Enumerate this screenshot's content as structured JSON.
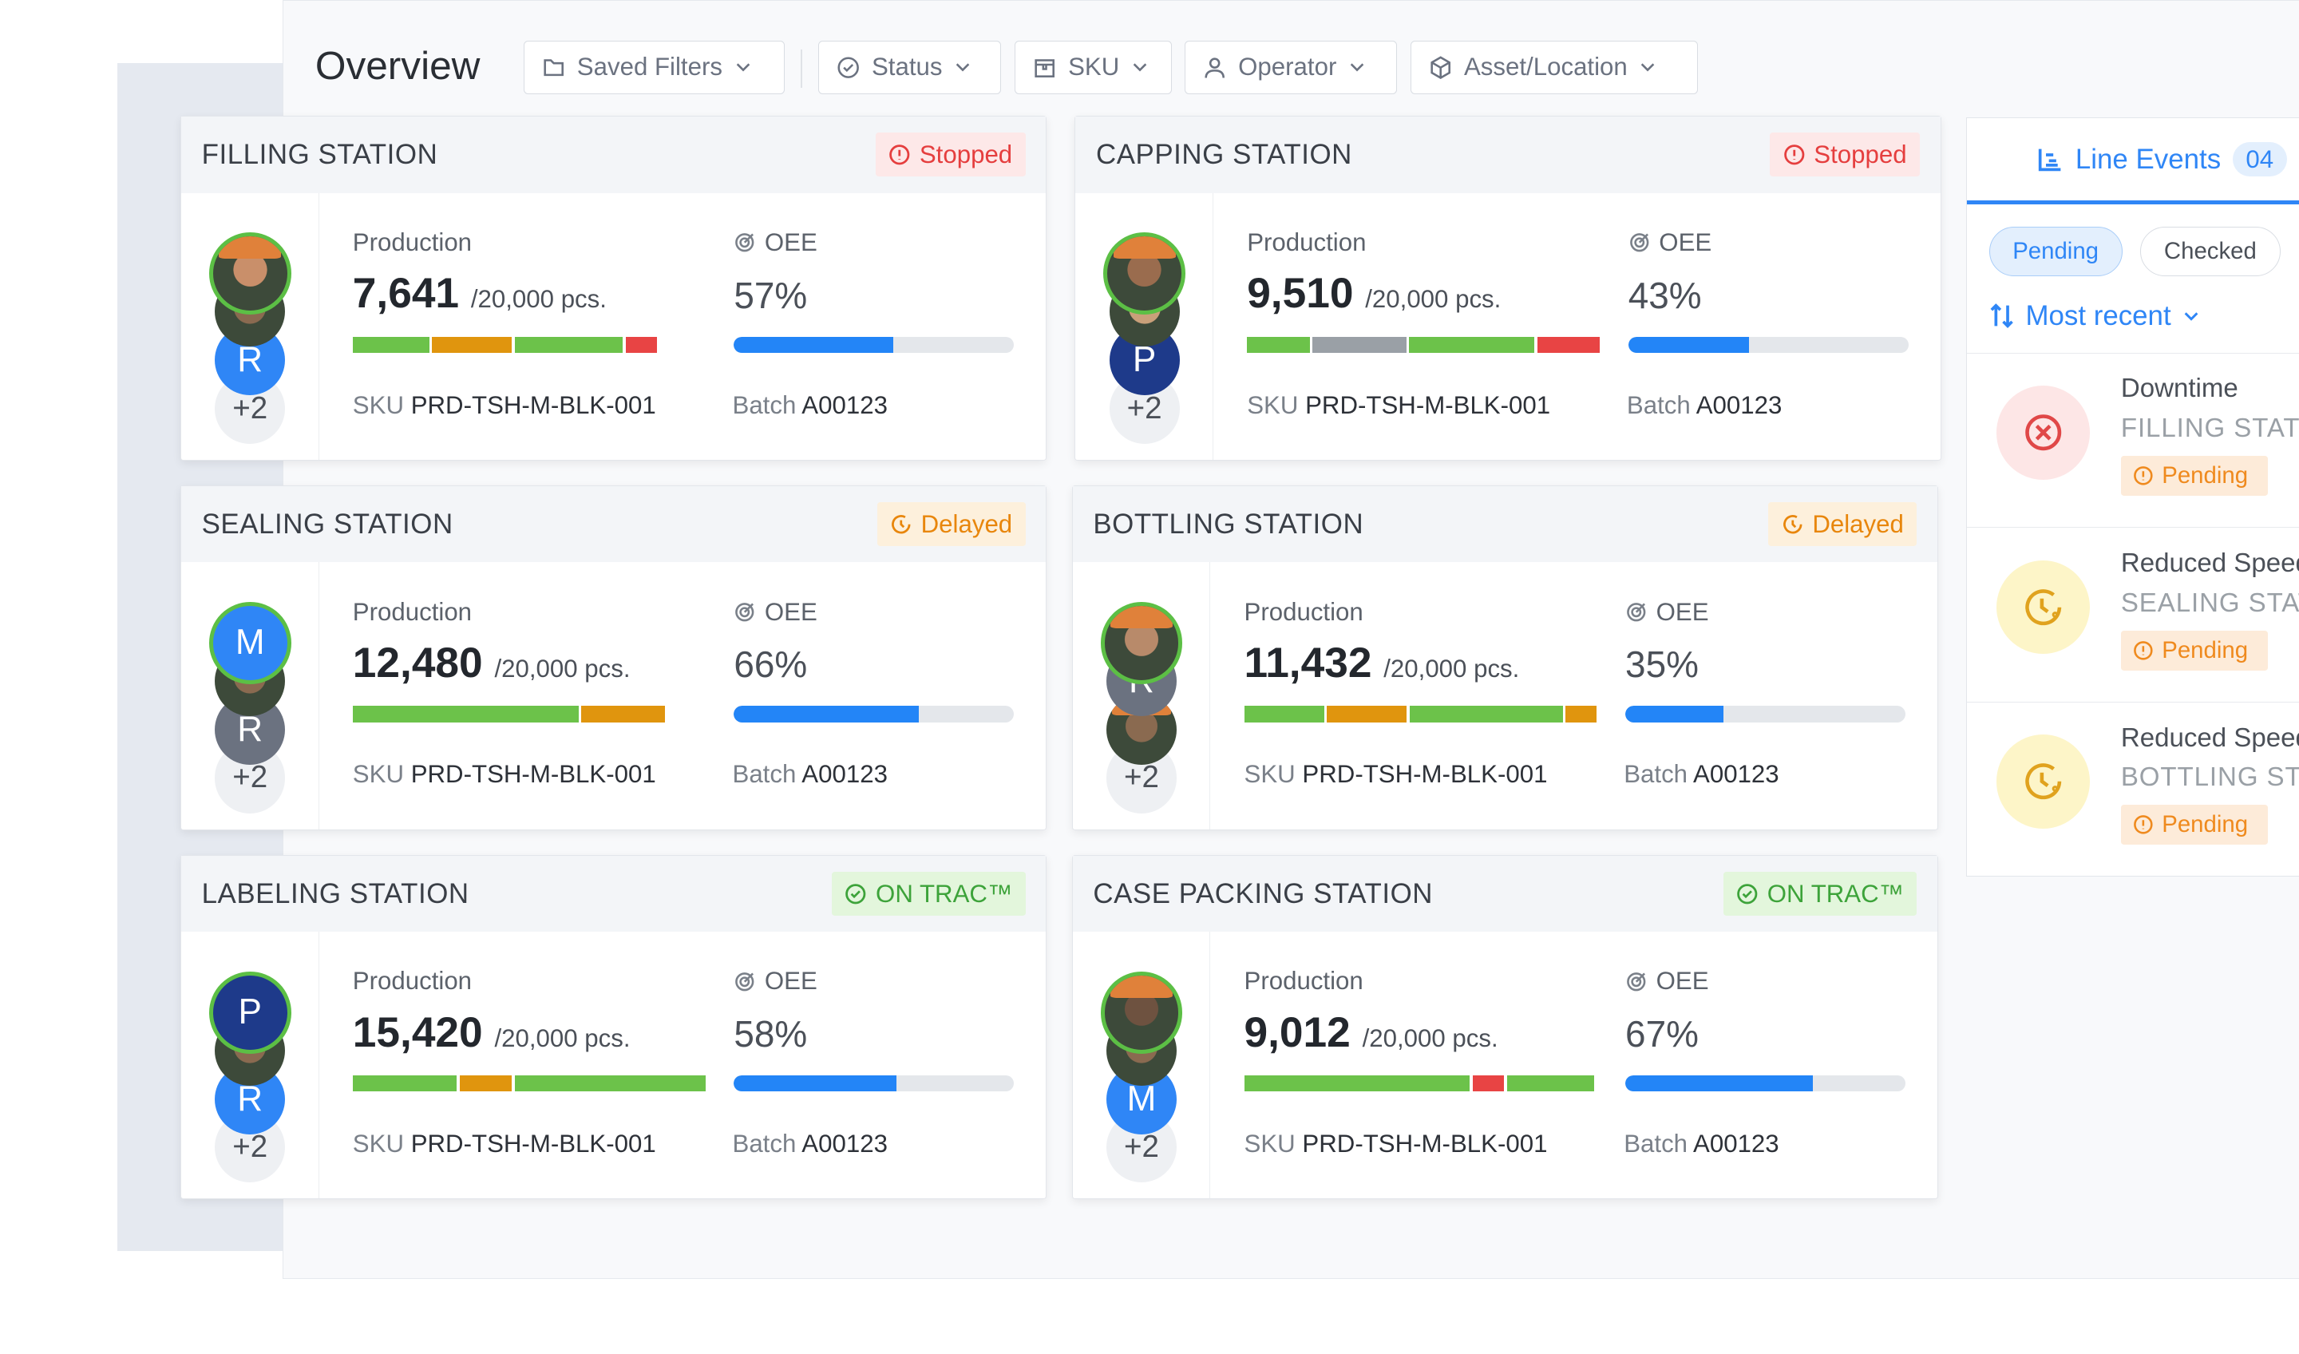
{
  "header": {
    "title": "Overview",
    "filters": [
      {
        "label": "Saved Filters",
        "icon": "folder-icon"
      },
      {
        "label": "Status",
        "icon": "check-circle-icon"
      },
      {
        "label": "SKU",
        "icon": "box-tag-icon"
      },
      {
        "label": "Operator",
        "icon": "user-icon"
      },
      {
        "label": "Asset/Location",
        "icon": "cube-icon"
      }
    ]
  },
  "colors": {
    "green": "#6cc24a",
    "orange": "#e0950e",
    "red": "#e84444",
    "gray": "#9aa0a6",
    "blue": "#2385f7",
    "stopped": "#e53e3e",
    "delayed": "#e8860c",
    "ontrack": "#3da33a"
  },
  "stations": [
    {
      "name": "FILLING STATION",
      "status": "Stopped",
      "status_type": "stopped",
      "production": "7,641",
      "target": "/20,000 pcs.",
      "oee": "57%",
      "oee_value": 57,
      "sku_label": "SKU",
      "sku": "PRD-TSH-M-BLK-001",
      "batch_label": "Batch",
      "batch": "A00123",
      "production_label": "Production",
      "oee_label": "OEE",
      "segments": [
        [
          "green",
          22
        ],
        [
          "orange",
          23
        ],
        [
          "green",
          31
        ],
        [
          "red",
          9
        ]
      ],
      "operators": [
        {
          "type": "photo",
          "tone": "#c98f6a"
        },
        {
          "type": "photo",
          "tone": "#8a6a50"
        },
        {
          "type": "letter",
          "letter": "R",
          "color": "#2f86f6"
        }
      ],
      "more": "+2"
    },
    {
      "name": "CAPPING STATION",
      "status": "Stopped",
      "status_type": "stopped",
      "production": "9,510",
      "target": "/20,000 pcs.",
      "oee": "43%",
      "oee_value": 43,
      "sku_label": "SKU",
      "sku": "PRD-TSH-M-BLK-001",
      "batch_label": "Batch",
      "batch": "A00123",
      "production_label": "Production",
      "oee_label": "OEE",
      "segments": [
        [
          "green",
          18
        ],
        [
          "gray",
          27
        ],
        [
          "green",
          36
        ],
        [
          "red",
          18
        ]
      ],
      "operators": [
        {
          "type": "photo",
          "tone": "#9a6c4e"
        },
        {
          "type": "photo",
          "tone": "#c9a07a"
        },
        {
          "type": "letter",
          "letter": "P",
          "color": "#1e3a8a"
        }
      ],
      "more": "+2"
    },
    {
      "name": "SEALING STATION",
      "status": "Delayed",
      "status_type": "delayed",
      "production": "12,480",
      "target": "/20,000 pcs.",
      "oee": "66%",
      "oee_value": 66,
      "sku_label": "SKU",
      "sku": "PRD-TSH-M-BLK-001",
      "batch_label": "Batch",
      "batch": "A00123",
      "production_label": "Production",
      "oee_label": "OEE",
      "segments": [
        [
          "green",
          65
        ],
        [
          "orange",
          24
        ]
      ],
      "operators": [
        {
          "type": "letter",
          "letter": "M",
          "color": "#2f86f6"
        },
        {
          "type": "photo",
          "tone": "#8a6a50"
        },
        {
          "type": "letter",
          "letter": "R",
          "color": "#6b7280"
        }
      ],
      "more": "+2"
    },
    {
      "name": "BOTTLING STATION",
      "status": "Delayed",
      "status_type": "delayed",
      "production": "11,432",
      "target": "/20,000 pcs.",
      "oee": "35%",
      "oee_value": 35,
      "sku_label": "SKU",
      "sku": "PRD-TSH-M-BLK-001",
      "batch_label": "Batch",
      "batch": "A00123",
      "production_label": "Production",
      "oee_label": "OEE",
      "segments": [
        [
          "green",
          23
        ],
        [
          "orange",
          23
        ],
        [
          "green",
          44
        ],
        [
          "orange",
          9
        ]
      ],
      "operators": [
        {
          "type": "photo",
          "tone": "#b88a6a"
        },
        {
          "type": "letter",
          "letter": "R",
          "color": "#6b7280"
        },
        {
          "type": "photo",
          "tone": "#8a6a50"
        }
      ],
      "more": "+2"
    },
    {
      "name": "LABELING STATION",
      "status": "ON TRAC™",
      "status_type": "ontrack",
      "production": "15,420",
      "target": "/20,000 pcs.",
      "oee": "58%",
      "oee_value": 58,
      "sku_label": "SKU",
      "sku": "PRD-TSH-M-BLK-001",
      "batch_label": "Batch",
      "batch": "A00123",
      "production_label": "Production",
      "oee_label": "OEE",
      "segments": [
        [
          "green",
          30
        ],
        [
          "orange",
          15
        ],
        [
          "green",
          55
        ]
      ],
      "operators": [
        {
          "type": "letter",
          "letter": "P",
          "color": "#1e3a8a"
        },
        {
          "type": "photo",
          "tone": "#8a6a50"
        },
        {
          "type": "letter",
          "letter": "R",
          "color": "#2f86f6"
        }
      ],
      "more": "+2"
    },
    {
      "name": "CASE PACKING STATION",
      "status": "ON TRAC™",
      "status_type": "ontrack",
      "production": "9,012",
      "target": "/20,000 pcs.",
      "oee": "67%",
      "oee_value": 67,
      "sku_label": "SKU",
      "sku": "PRD-TSH-M-BLK-001",
      "batch_label": "Batch",
      "batch": "A00123",
      "production_label": "Production",
      "oee_label": "OEE",
      "segments": [
        [
          "green",
          65
        ],
        [
          "red",
          9
        ],
        [
          "green",
          25
        ]
      ],
      "operators": [
        {
          "type": "photo",
          "tone": "#6e5240"
        },
        {
          "type": "photo",
          "tone": "#8a6a50"
        },
        {
          "type": "letter",
          "letter": "M",
          "color": "#2f86f6"
        }
      ],
      "more": "+2"
    }
  ],
  "events": {
    "title": "Line Events",
    "count": "04",
    "tabs": [
      "Pending",
      "Checked"
    ],
    "sort": "Most recent",
    "items": [
      {
        "title": "Downtime",
        "station": "FILLING STATION",
        "status": "Pending",
        "kind": "downtime"
      },
      {
        "title": "Reduced Speed",
        "station": "SEALING STATION",
        "status": "Pending",
        "kind": "reduced-speed"
      },
      {
        "title": "Reduced Speed",
        "station": "BOTTLING STATION",
        "status": "Pending",
        "kind": "reduced-speed"
      }
    ]
  }
}
